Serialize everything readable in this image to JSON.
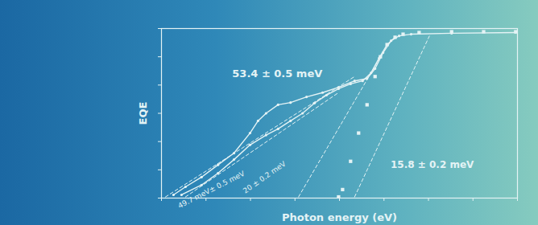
{
  "chart_data": {
    "type": "line",
    "xlabel": "Photon energy (eV)",
    "ylabel": "EQE",
    "log": "y",
    "grid": false,
    "tick_labels": false,
    "xlim": [
      1.0,
      1.8
    ],
    "xticks": [
      1.0,
      1.1,
      1.2,
      1.3,
      1.4,
      1.5,
      1.6,
      1.7,
      1.8
    ],
    "ylim": [
      1e-06,
      1
    ],
    "yticks": [
      1e-06,
      1e-05,
      0.0001,
      0.001,
      0.01,
      0.1,
      1
    ],
    "series": [
      {
        "type": "line",
        "marker": "circle",
        "line_style": "solid",
        "color": "#e4f3f5",
        "x": [
          1.027,
          1.054,
          1.09,
          1.127,
          1.163,
          1.199,
          1.217,
          1.235,
          1.262,
          1.29,
          1.326,
          1.362,
          1.398,
          1.434,
          1.462,
          1.48,
          1.498,
          1.516,
          1.534,
          1.561,
          1.652,
          1.796
        ],
        "values": [
          1.3e-06,
          2.5e-06,
          5.5e-06,
          1.5e-05,
          3.9e-05,
          0.0002,
          0.00054,
          0.001,
          0.002,
          0.0024,
          0.0038,
          0.0054,
          0.0083,
          0.014,
          0.017,
          0.038,
          0.14,
          0.37,
          0.55,
          0.63,
          0.68,
          0.72
        ]
      },
      {
        "type": "line",
        "marker": "circle",
        "line_style": "solid",
        "color": "#e4f3f5",
        "x": [
          1.045,
          1.09,
          1.127,
          1.163,
          1.199,
          1.235,
          1.262,
          1.29,
          1.317,
          1.344,
          1.371,
          1.398,
          1.425,
          1.452,
          1.471,
          1.489,
          1.507,
          1.525
        ],
        "values": [
          1.3e-06,
          2.9e-06,
          7.6e-06,
          2.3e-05,
          7.6e-05,
          0.00017,
          0.00028,
          0.00054,
          0.001,
          0.0023,
          0.0044,
          0.0074,
          0.011,
          0.014,
          0.027,
          0.089,
          0.27,
          0.49
        ]
      },
      {
        "type": "scatter",
        "marker": "square",
        "color": "#e4f3f5",
        "x": [
          1.398,
          1.407,
          1.425,
          1.443,
          1.462,
          1.48,
          1.492,
          1.507,
          1.525,
          1.543,
          1.579,
          1.652,
          1.724,
          1.796
        ],
        "values": [
          1.1e-06,
          2e-06,
          2e-05,
          0.0002,
          0.002,
          0.02,
          0.1,
          0.27,
          0.49,
          0.63,
          0.72,
          0.77,
          0.77,
          0.77
        ]
      },
      {
        "type": "line",
        "line_style": "dashed",
        "color": "#e4f3f5",
        "label": "53.4 ± 0.5 meV",
        "x": [
          1.009,
          1.434
        ],
        "values": [
          1.1e-06,
          0.02
        ]
      },
      {
        "type": "line",
        "line_style": "dashed",
        "color": "#e4f3f5",
        "label": "20 ± 0.2 meV",
        "x": [
          1.308,
          1.493
        ],
        "values": [
          1.1e-06,
          0.107
        ]
      },
      {
        "type": "line",
        "line_style": "dashed",
        "color": "#e4f3f5",
        "label": "49.7 meV± 0.5 meV",
        "x": [
          1.054,
          1.398
        ],
        "values": [
          1.1e-06,
          0.0054
        ]
      },
      {
        "type": "line",
        "line_style": "dashed",
        "color": "#e4f3f5",
        "label": "15.8 ± 0.2 meV",
        "x": [
          1.434,
          1.602
        ],
        "values": [
          1.1e-06,
          0.54
        ]
      }
    ]
  }
}
